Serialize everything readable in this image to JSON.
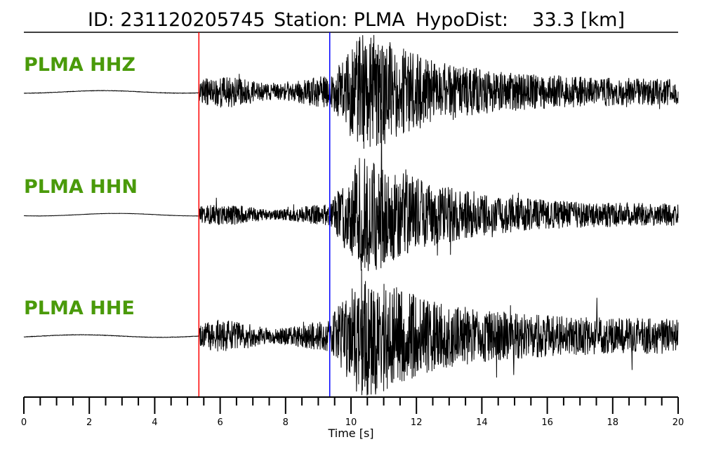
{
  "title": {
    "id": "ID: 231120205745",
    "station": "Station: PLMA",
    "hypodist": "HypoDist:    33.3 [km]"
  },
  "label_color": "#4a9a0a",
  "trace_color": "#000000",
  "chart_data": {
    "type": "line",
    "xlabel": "Time [s]",
    "xlim": [
      0,
      20
    ],
    "major_ticks": [
      0,
      2,
      4,
      6,
      8,
      10,
      12,
      14,
      16,
      18,
      20
    ],
    "major_tick_labels": [
      "0",
      "2",
      "4",
      "6",
      "8",
      "10",
      "12",
      "14",
      "16",
      "18",
      "20"
    ],
    "minor_tick_step": 0.5,
    "grid": false,
    "picks": [
      {
        "phase": "P",
        "time": 5.35,
        "color": "#ff0000"
      },
      {
        "phase": "S",
        "time": 9.35,
        "color": "#0000ff"
      }
    ],
    "series": [
      {
        "name": "PLMA HHZ",
        "noise_amp": 0.01,
        "pwave_amp": 0.15,
        "swave_amp": 0.55,
        "coda_amp": 0.12,
        "seed": 11
      },
      {
        "name": "PLMA HHN",
        "noise_amp": 0.006,
        "pwave_amp": 0.1,
        "swave_amp": 0.55,
        "coda_amp": 0.1,
        "seed": 23
      },
      {
        "name": "PLMA HHE",
        "noise_amp": 0.01,
        "pwave_amp": 0.15,
        "swave_amp": 0.58,
        "coda_amp": 0.16,
        "seed": 37
      }
    ]
  }
}
